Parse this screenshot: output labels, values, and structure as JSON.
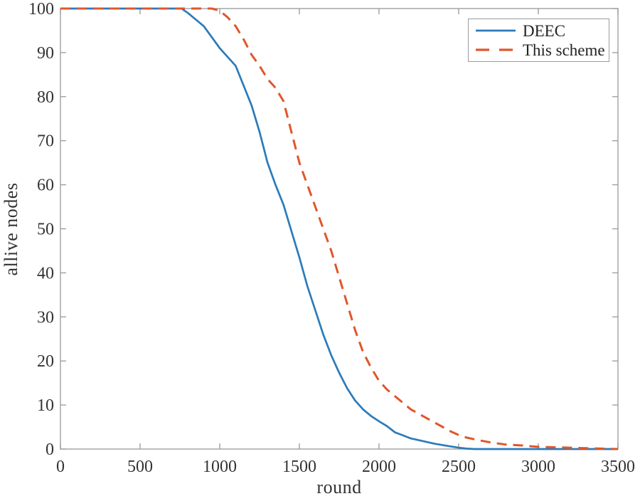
{
  "chart_data": {
    "type": "line",
    "title": "",
    "xlabel": "round",
    "ylabel": "allive nodes",
    "xlim": [
      0,
      3500
    ],
    "ylim": [
      0,
      100
    ],
    "x_ticks": [
      0,
      500,
      1000,
      1500,
      2000,
      2500,
      3000,
      3500
    ],
    "y_ticks": [
      0,
      10,
      20,
      30,
      40,
      50,
      60,
      70,
      80,
      90,
      100
    ],
    "grid": false,
    "legend_position": "top-right",
    "axis_color": "#a0a0a0",
    "tick_label_color": "#333333",
    "series": [
      {
        "name": "DEEC",
        "color": "#2b7bba",
        "style": "solid",
        "points": [
          [
            0,
            100
          ],
          [
            200,
            100
          ],
          [
            400,
            100
          ],
          [
            600,
            100
          ],
          [
            700,
            100
          ],
          [
            760,
            100
          ],
          [
            800,
            99
          ],
          [
            850,
            97.5
          ],
          [
            900,
            96
          ],
          [
            950,
            93.5
          ],
          [
            1000,
            91
          ],
          [
            1050,
            89
          ],
          [
            1100,
            87
          ],
          [
            1150,
            82.5
          ],
          [
            1200,
            78
          ],
          [
            1250,
            72
          ],
          [
            1300,
            65
          ],
          [
            1350,
            60
          ],
          [
            1400,
            55.5
          ],
          [
            1450,
            49.5
          ],
          [
            1500,
            43.5
          ],
          [
            1550,
            37
          ],
          [
            1600,
            31.5
          ],
          [
            1650,
            26
          ],
          [
            1700,
            21.3
          ],
          [
            1750,
            17.3
          ],
          [
            1800,
            13.8
          ],
          [
            1850,
            11
          ],
          [
            1900,
            9
          ],
          [
            1950,
            7.5
          ],
          [
            2000,
            6.3
          ],
          [
            2050,
            5.2
          ],
          [
            2100,
            3.8
          ],
          [
            2150,
            3.1
          ],
          [
            2200,
            2.4
          ],
          [
            2250,
            2
          ],
          [
            2300,
            1.6
          ],
          [
            2350,
            1.2
          ],
          [
            2400,
            0.9
          ],
          [
            2450,
            0.6
          ],
          [
            2500,
            0.3
          ],
          [
            2550,
            0.1
          ],
          [
            2600,
            0
          ],
          [
            2800,
            0
          ],
          [
            3000,
            0
          ],
          [
            3250,
            0
          ],
          [
            3500,
            0
          ]
        ]
      },
      {
        "name": "This scheme",
        "color": "#e0562b",
        "style": "dashed",
        "points": [
          [
            0,
            100
          ],
          [
            200,
            100
          ],
          [
            400,
            100
          ],
          [
            600,
            100
          ],
          [
            800,
            100
          ],
          [
            950,
            100
          ],
          [
            1000,
            99.5
          ],
          [
            1050,
            98
          ],
          [
            1100,
            96
          ],
          [
            1150,
            93
          ],
          [
            1200,
            89.5
          ],
          [
            1250,
            87
          ],
          [
            1300,
            84
          ],
          [
            1350,
            82
          ],
          [
            1400,
            79
          ],
          [
            1450,
            72
          ],
          [
            1500,
            65
          ],
          [
            1550,
            60
          ],
          [
            1600,
            55
          ],
          [
            1650,
            50
          ],
          [
            1700,
            45
          ],
          [
            1750,
            39
          ],
          [
            1800,
            33
          ],
          [
            1850,
            27
          ],
          [
            1900,
            22
          ],
          [
            1950,
            18.5
          ],
          [
            2000,
            15.5
          ],
          [
            2050,
            13.5
          ],
          [
            2100,
            12
          ],
          [
            2150,
            10.5
          ],
          [
            2200,
            9
          ],
          [
            2250,
            8
          ],
          [
            2300,
            7
          ],
          [
            2350,
            6
          ],
          [
            2400,
            5
          ],
          [
            2450,
            4
          ],
          [
            2500,
            3.2
          ],
          [
            2550,
            2.6
          ],
          [
            2600,
            2.2
          ],
          [
            2700,
            1.5
          ],
          [
            2800,
            1
          ],
          [
            2900,
            0.8
          ],
          [
            3000,
            0.5
          ],
          [
            3100,
            0.4
          ],
          [
            3200,
            0.3
          ],
          [
            3300,
            0.2
          ],
          [
            3400,
            0.1
          ],
          [
            3500,
            0
          ]
        ]
      }
    ]
  }
}
